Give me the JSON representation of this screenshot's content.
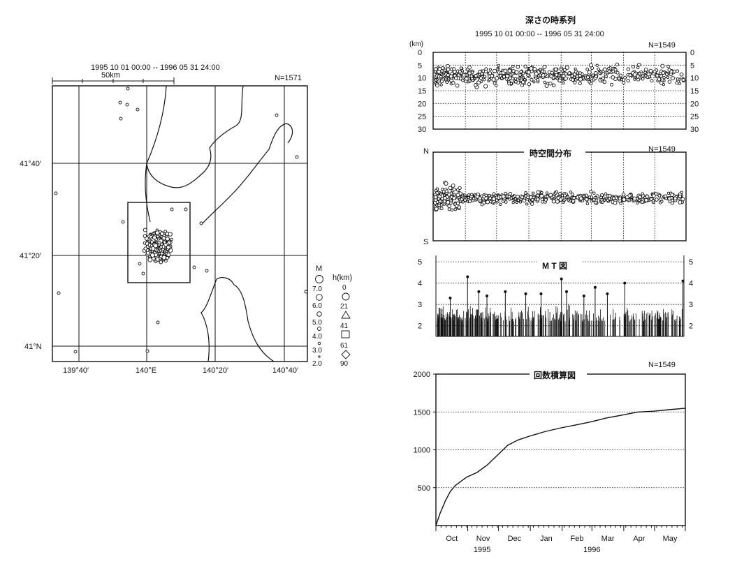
{
  "colors": {
    "ink": "#111111",
    "paper": "#ffffff"
  },
  "map": {
    "period": "1995 10 01 00:00 -- 1996 05 31 24:00",
    "count": "N=1571",
    "scale_label": "50km",
    "lat_labels": [
      "41°40′",
      "41°20′",
      "41°N"
    ],
    "lon_labels": [
      "139°40′",
      "140°E",
      "140°20′",
      "140°40′"
    ],
    "legend_m_title": "M",
    "legend_m_values": [
      "7.0",
      "6.0",
      "5.0",
      "4.0",
      "3.0",
      "2.0"
    ],
    "legend_h_title": "h(km)",
    "legend_h_values": [
      "0",
      "21",
      "41",
      "61",
      "90"
    ],
    "legend_h_symbols": [
      "point",
      "circle",
      "triangle",
      "square",
      "diamond"
    ]
  },
  "chart_data": [
    {
      "id": "depth",
      "type": "scatter",
      "title": "深さの時系列",
      "subtitle": "1995 10 01 00:00 -- 1996 05 31 24:00",
      "count": "N=1549",
      "ylabel": "(km)",
      "ylim": [
        0,
        30
      ],
      "yticks": [
        0,
        5,
        10,
        15,
        20,
        25,
        30
      ],
      "y_inverted": true,
      "xlim": [
        "1995-10-01",
        "1996-05-31"
      ],
      "grid": true
    },
    {
      "id": "spacetime",
      "type": "scatter",
      "title": "時空間分布",
      "count": "N=1549",
      "top_label": "N",
      "bottom_label": "S",
      "xlim": [
        "1995-10-01",
        "1996-05-31"
      ],
      "grid": true
    },
    {
      "id": "mt",
      "type": "bar",
      "title": "M T 図",
      "ylim": [
        1.5,
        5.3
      ],
      "yticks": [
        2,
        3,
        4,
        5
      ],
      "xlim": [
        "1995-10-01",
        "1996-05-31"
      ],
      "notable_events": [
        {
          "x": "1995-10-15",
          "y": 3.3
        },
        {
          "x": "1995-11-01",
          "y": 4.3
        },
        {
          "x": "1995-11-12",
          "y": 3.6
        },
        {
          "x": "1995-11-20",
          "y": 3.4
        },
        {
          "x": "1995-12-08",
          "y": 3.6
        },
        {
          "x": "1995-12-28",
          "y": 3.5
        },
        {
          "x": "1996-01-12",
          "y": 3.5
        },
        {
          "x": "1996-02-01",
          "y": 4.2
        },
        {
          "x": "1996-02-06",
          "y": 3.6
        },
        {
          "x": "1996-02-23",
          "y": 3.4
        },
        {
          "x": "1996-03-05",
          "y": 3.8
        },
        {
          "x": "1996-03-17",
          "y": 3.5
        },
        {
          "x": "1996-04-03",
          "y": 4.0
        },
        {
          "x": "1996-05-30",
          "y": 4.1
        }
      ],
      "grid": true
    },
    {
      "id": "cumulative",
      "type": "line",
      "title": "回数積算図",
      "count": "N=1549",
      "ylim": [
        0,
        2000
      ],
      "yticks": [
        500,
        1000,
        1500,
        2000
      ],
      "xticks": [
        "Oct",
        "Nov",
        "Dec",
        "Jan",
        "Feb",
        "Mar",
        "Apr",
        "May"
      ],
      "year_labels": [
        "1995",
        "1996"
      ],
      "series": [
        {
          "x": [
            "1995-10-01",
            "1995-10-05",
            "1995-10-10",
            "1995-10-15",
            "1995-10-20",
            "1995-10-25",
            "1995-10-31",
            "1995-11-10",
            "1995-11-20",
            "1995-11-30",
            "1995-12-10",
            "1995-12-20",
            "1995-12-31",
            "1996-01-15",
            "1996-01-31",
            "1996-02-15",
            "1996-02-29",
            "1996-03-15",
            "1996-03-31",
            "1996-04-15",
            "1996-04-30",
            "1996-05-15",
            "1996-05-31"
          ],
          "y": [
            0,
            160,
            320,
            450,
            530,
            580,
            640,
            700,
            800,
            930,
            1060,
            1130,
            1180,
            1240,
            1290,
            1330,
            1370,
            1420,
            1460,
            1500,
            1510,
            1530,
            1549
          ]
        }
      ],
      "grid": true
    }
  ]
}
